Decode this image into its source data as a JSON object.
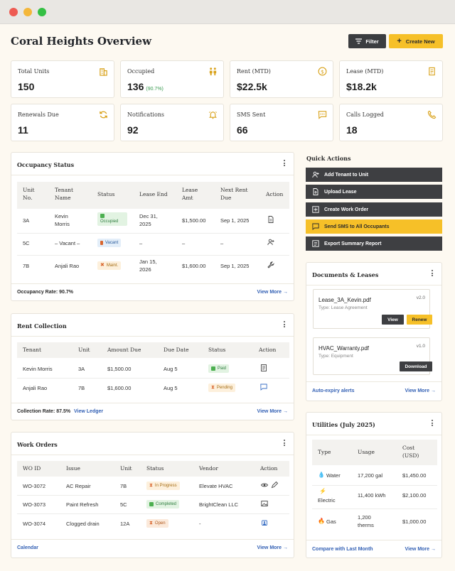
{
  "page": {
    "title": "Coral Heights Overview",
    "filter_label": "Filter",
    "create_label": "Create New"
  },
  "stats": [
    {
      "label": "Total Units",
      "value": "150",
      "icon": "building-icon"
    },
    {
      "label": "Occupied",
      "value": "136",
      "sub": "(90.7%)",
      "icon": "people-icon"
    },
    {
      "label": "Rent (MTD)",
      "value": "$22.5k",
      "icon": "dollar-icon"
    },
    {
      "label": "Lease (MTD)",
      "value": "$18.2k",
      "icon": "document-icon"
    },
    {
      "label": "Renewals Due",
      "value": "11",
      "icon": "refresh-icon"
    },
    {
      "label": "Notifications",
      "value": "92",
      "icon": "bell-icon"
    },
    {
      "label": "SMS Sent",
      "value": "66",
      "icon": "message-icon"
    },
    {
      "label": "Calls Logged",
      "value": "18",
      "icon": "phone-icon"
    }
  ],
  "occupancy": {
    "title": "Occupancy Status",
    "headers": [
      "Unit No.",
      "Tenant Name",
      "Status",
      "Lease End",
      "Lease Amt",
      "Next Rent Due",
      "Action"
    ],
    "rows": [
      {
        "unit": "3A",
        "tenant": "Kevin Morris",
        "status": "Occupied",
        "lease_end": "Dec 31, 2025",
        "amt": "$1,500.00",
        "next_due": "Sep 1, 2025",
        "action": "document-icon"
      },
      {
        "unit": "5C",
        "tenant": "– Vacant –",
        "status": "Vacant",
        "lease_end": "–",
        "amt": "–",
        "next_due": "–",
        "action": "add-user-icon"
      },
      {
        "unit": "7B",
        "tenant": "Anjali Rao",
        "status": "Maint.",
        "lease_end": "Jan 15, 2026",
        "amt": "$1,600.00",
        "next_due": "Sep 1, 2025",
        "action": "wrench-icon"
      }
    ],
    "footer": "Occupancy Rate: 90.7%",
    "view_more": "View More →"
  },
  "rent": {
    "title": "Rent Collection",
    "headers": [
      "Tenant",
      "Unit",
      "Amount Due",
      "Due Date",
      "Status",
      "Action"
    ],
    "rows": [
      {
        "tenant": "Kevin Morris",
        "unit": "3A",
        "amount": "$1,500.00",
        "due": "Aug 5",
        "status": "Paid"
      },
      {
        "tenant": "Anjali Rao",
        "unit": "7B",
        "amount": "$1,600.00",
        "due": "Aug 5",
        "status": "Pending"
      }
    ],
    "footer": "Collection Rate: 87.5%",
    "ledger": "View Ledger",
    "view_more": "View More →"
  },
  "work_orders": {
    "title": "Work Orders",
    "headers": [
      "WO ID",
      "Issue",
      "Unit",
      "Status",
      "Vendor",
      "Action"
    ],
    "rows": [
      {
        "id": "WO-3072",
        "issue": "AC Repair",
        "unit": "7B",
        "status": "In Progress",
        "vendor": "Elevate HVAC"
      },
      {
        "id": "WO-3073",
        "issue": "Paint Refresh",
        "unit": "5C",
        "status": "Completed",
        "vendor": "BrightClean LLC"
      },
      {
        "id": "WO-3074",
        "issue": "Clogged drain",
        "unit": "12A",
        "status": "Open",
        "vendor": "-"
      }
    ],
    "calendar": "Calendar",
    "view_more": "View More →"
  },
  "quick_actions": {
    "title": "Quick Actions",
    "items": [
      {
        "label": "Add Tenant to Unit",
        "icon": "add-user-icon"
      },
      {
        "label": "Upload Lease",
        "icon": "upload-icon"
      },
      {
        "label": "Create Work Order",
        "icon": "plus-square-icon"
      },
      {
        "label": "Send SMS to All Occupants",
        "icon": "message-icon"
      },
      {
        "label": "Export Summary Report",
        "icon": "export-icon"
      }
    ]
  },
  "documents": {
    "title": "Documents & Leases",
    "items": [
      {
        "name": "Lease_3A_Kevin.pdf",
        "type": "Type: Lease Agreement",
        "version": "v2.0",
        "btn1": "View",
        "btn2": "Renew"
      },
      {
        "name": "HVAC_Warranty.pdf",
        "type": "Type: Equipment",
        "version": "v1.0",
        "btn1": "Download"
      }
    ],
    "alerts": "Auto-expiry alerts",
    "view_more": "View More →"
  },
  "utilities": {
    "title": "Utilities (July 2025)",
    "headers": [
      "Type",
      "Usage",
      "Cost (USD)"
    ],
    "rows": [
      {
        "type": "Water",
        "usage": "17,200 gal",
        "cost": "$1,450.00",
        "icon": "water-icon"
      },
      {
        "type": "Electric",
        "usage": "11,400 kWh",
        "cost": "$2,100.00",
        "icon": "bolt-icon"
      },
      {
        "type": "Gas",
        "usage": "1,200 therms",
        "cost": "$1,000.00",
        "icon": "flame-icon"
      }
    ],
    "compare": "Compare with Last Month",
    "view_more": "View More →"
  },
  "colors": {
    "accent": "#f6c028",
    "dark": "#3e3f42",
    "link": "#3562b5",
    "icon_gold": "#d9a21b"
  }
}
